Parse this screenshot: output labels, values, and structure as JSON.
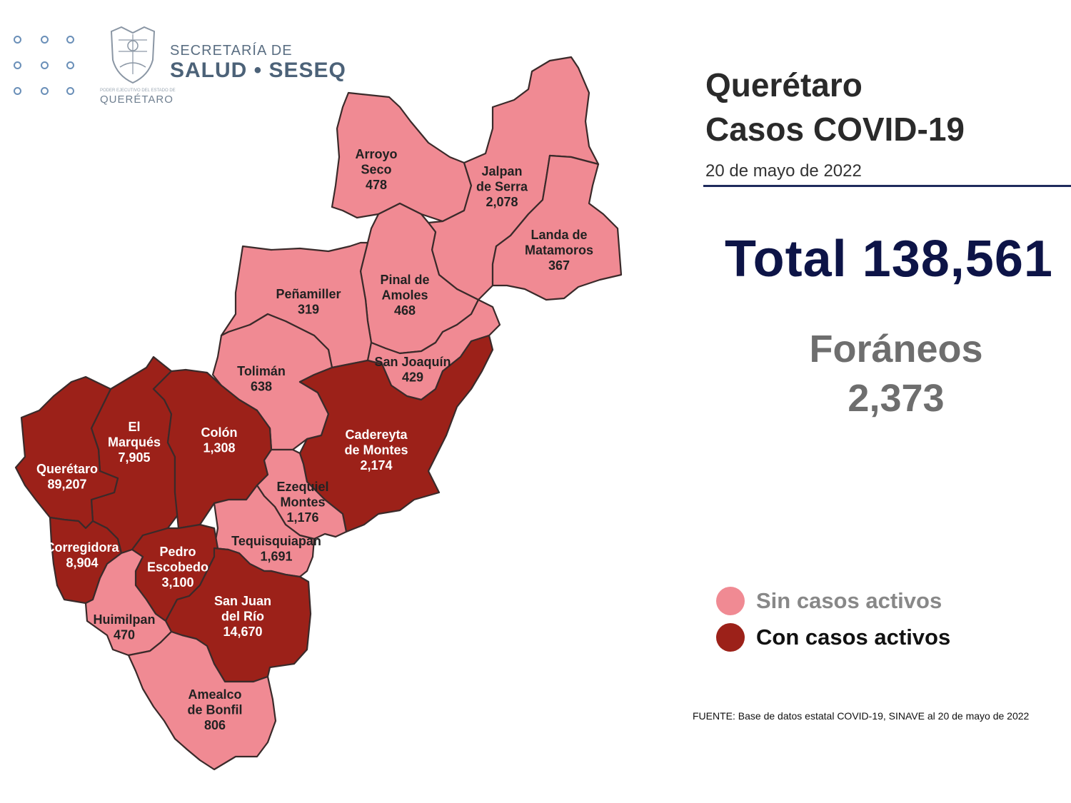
{
  "header": {
    "secretaria_line1": "SECRETARÍA DE",
    "secretaria_line2": "SALUD • SESEQ",
    "state_line": "QUERÉTARO",
    "gov_line": "PODER EJECUTIVO DEL ESTADO DE"
  },
  "title": {
    "line1": "Querétaro",
    "line2": "Casos COVID-19",
    "date": "20 de mayo de 2022"
  },
  "total_text": "Total 138,561",
  "foraneos": {
    "label": "Foráneos",
    "value": "2,373"
  },
  "legend": {
    "inactive": {
      "label": "Sin casos activos",
      "color": "#f08a93"
    },
    "active": {
      "label": "Con casos activos",
      "color": "#9c2119"
    }
  },
  "source": "FUENTE: Base de datos estatal  COVID-19,  SINAVE  al 20 de mayo de 2022",
  "municipalities": [
    {
      "id": "arroyo-seco",
      "lines": [
        "Arroyo",
        "Seco",
        "478"
      ],
      "cases": 478,
      "active": false
    },
    {
      "id": "jalpan-de-serra",
      "lines": [
        "Jalpan",
        "de Serra",
        "2,078"
      ],
      "cases": 2078,
      "active": false
    },
    {
      "id": "landa-de-matamoros",
      "lines": [
        "Landa de",
        "Matamoros",
        "367"
      ],
      "cases": 367,
      "active": false
    },
    {
      "id": "pinal-de-amoles",
      "lines": [
        "Pinal de",
        "Amoles",
        "468"
      ],
      "cases": 468,
      "active": false
    },
    {
      "id": "penamiller",
      "lines": [
        "Peñamiller",
        "319"
      ],
      "cases": 319,
      "active": false
    },
    {
      "id": "san-joaquin",
      "lines": [
        "San Joaquín",
        "429"
      ],
      "cases": 429,
      "active": false
    },
    {
      "id": "toliman",
      "lines": [
        "Tolimán",
        "638"
      ],
      "cases": 638,
      "active": false
    },
    {
      "id": "cadereyta-de-montes",
      "lines": [
        "Cadereyta",
        "de Montes",
        "2,174"
      ],
      "cases": 2174,
      "active": true
    },
    {
      "id": "el-marques",
      "lines": [
        "El",
        "Marqués",
        "7,905"
      ],
      "cases": 7905,
      "active": true
    },
    {
      "id": "colon",
      "lines": [
        "Colón",
        "1,308"
      ],
      "cases": 1308,
      "active": true
    },
    {
      "id": "queretaro",
      "lines": [
        "Querétaro",
        "89,207"
      ],
      "cases": 89207,
      "active": true
    },
    {
      "id": "ezequiel-montes",
      "lines": [
        "Ezequiel",
        "Montes",
        "1,176"
      ],
      "cases": 1176,
      "active": false
    },
    {
      "id": "tequisquiapan",
      "lines": [
        "Tequisquiapan",
        "1,691"
      ],
      "cases": 1691,
      "active": false
    },
    {
      "id": "corregidora",
      "lines": [
        "Corregidora",
        "8,904"
      ],
      "cases": 8904,
      "active": true
    },
    {
      "id": "pedro-escobedo",
      "lines": [
        "Pedro",
        "Escobedo",
        "3,100"
      ],
      "cases": 3100,
      "active": true
    },
    {
      "id": "san-juan-del-rio",
      "lines": [
        "San Juan",
        "del Río",
        "14,670"
      ],
      "cases": 14670,
      "active": true
    },
    {
      "id": "huimilpan",
      "lines": [
        "Huimilpan",
        "470"
      ],
      "cases": 470,
      "active": false
    },
    {
      "id": "amealco-de-bonfil",
      "lines": [
        "Amealco",
        "de Bonfil",
        "806"
      ],
      "cases": 806,
      "active": false
    }
  ]
}
